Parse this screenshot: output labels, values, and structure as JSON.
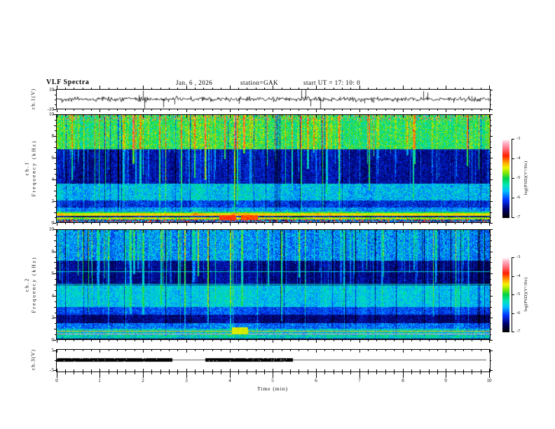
{
  "header": {
    "title": "VLF Spectra",
    "date": "Jan. 6 , 2026",
    "station": "station=GAK",
    "start_ut": "start UT =  17: 10: 0"
  },
  "axes": {
    "time_label": "Time  (min)",
    "time_ticks": [
      "0",
      "1",
      "2",
      "3",
      "4",
      "5",
      "6",
      "7",
      "8",
      "9",
      "10"
    ],
    "time_range_min": [
      0,
      10
    ],
    "minor_step_min": 0.2
  },
  "panels": {
    "ch1_wave": {
      "ylabel": "ch.1(V)",
      "ymax_label": "10",
      "ymin_label": "-10",
      "ylim": [
        -10,
        10
      ]
    },
    "ch1_spec": {
      "ylabel_channel": "ch.1",
      "ylabel_axis": "Frequency  (kHz)",
      "yticks": [
        "10",
        "8",
        "6",
        "4",
        "2",
        "0"
      ],
      "ylim_khz": [
        0,
        10
      ]
    },
    "ch2_spec": {
      "ylabel_channel": "ch.2",
      "ylabel_axis": "Frequency  (kHz)",
      "yticks": [
        "10",
        "8",
        "6",
        "4",
        "2",
        "0"
      ],
      "ylim_khz": [
        0,
        10
      ]
    },
    "ch3_wave": {
      "ylabel": "ch.3(V)",
      "ymax_label": "5",
      "ymin_label": "-5",
      "ylim": [
        -5,
        5
      ]
    }
  },
  "colorbar": {
    "label": "log(PSD)(V²/Hz)",
    "tick_labels": [
      "-3",
      "-4",
      "-5",
      "-6",
      "-7"
    ],
    "range": [
      -7,
      -3
    ],
    "stops": [
      [
        -7,
        "#000000"
      ],
      [
        -6.55,
        "#00006e"
      ],
      [
        -6.1,
        "#0033ff"
      ],
      [
        -5.65,
        "#00bfff"
      ],
      [
        -5.35,
        "#00e6b8"
      ],
      [
        -5.0,
        "#00d24a"
      ],
      [
        -4.7,
        "#8ae800"
      ],
      [
        -4.45,
        "#f2f200"
      ],
      [
        -4.2,
        "#ffa500"
      ],
      [
        -3.85,
        "#ff1e00"
      ],
      [
        -3.5,
        "#ff6e7d"
      ],
      [
        -3.2,
        "#ffb4c8"
      ],
      [
        -3,
        "#ffffff"
      ]
    ]
  },
  "colors": {
    "background": "#ffffff",
    "axis": "#000000",
    "trace": "#000000",
    "ch3_thin_line": "#555555",
    "ch3_thick_bar": "#000000"
  },
  "chart_data": [
    {
      "id": "ch1_waveform",
      "type": "line",
      "ylabel": "ch.1(V)",
      "ylim_v": [
        -10,
        10
      ],
      "xlim_min": [
        0,
        10
      ],
      "description": "broadband noise ~±2 V with intermittent impulsive spikes reaching ±10 V",
      "noise_amp_v": 2.2,
      "spikes_t_amp": [
        [
          0.12,
          -3.5
        ],
        [
          1.05,
          2.5
        ],
        [
          1.89,
          4.0
        ],
        [
          1.99,
          8.5
        ],
        [
          2.02,
          -9.0
        ],
        [
          2.46,
          -8.0
        ],
        [
          2.58,
          -3.0
        ],
        [
          2.73,
          -5.0
        ],
        [
          3.1,
          3.0
        ],
        [
          3.55,
          -2.5
        ],
        [
          4.22,
          -4.5
        ],
        [
          5.0,
          -3.0
        ],
        [
          5.66,
          9.0
        ],
        [
          5.76,
          10.0
        ],
        [
          5.87,
          -7.0
        ],
        [
          6.1,
          -9.5
        ],
        [
          6.55,
          2.5
        ],
        [
          7.12,
          -4.0
        ],
        [
          7.33,
          -3.5
        ],
        [
          8.48,
          8.0
        ],
        [
          8.57,
          6.5
        ],
        [
          9.17,
          -3.5
        ],
        [
          9.6,
          3.0
        ]
      ]
    },
    {
      "id": "ch1_spectrogram",
      "type": "heatmap",
      "ylim_khz": [
        0,
        10
      ],
      "z_range": [
        -7,
        -3
      ],
      "z_label": "log(PSD)(V²/Hz)",
      "top_red": true,
      "seed": 1337,
      "bands": [
        {
          "f_khz": [
            6.8,
            10.01
          ],
          "base": -5.0,
          "noise": 0.5,
          "streak": 0.95
        },
        {
          "f_khz": [
            3.6,
            6.8
          ],
          "base": -6.35,
          "noise": 0.33,
          "streak": 1.25
        },
        {
          "f_khz": [
            2.0,
            3.6
          ],
          "base": -5.55,
          "noise": 0.4,
          "streak": 0.5
        },
        {
          "f_khz": [
            1.35,
            2.0
          ],
          "base": -6.1,
          "noise": 0.38,
          "streak": 0.55
        },
        {
          "f_khz": [
            1.0,
            1.35
          ],
          "base": -5.7,
          "noise": 0.4,
          "streak": 0.35
        },
        {
          "f_khz": [
            0.82,
            1.0
          ],
          "base": -4.95,
          "noise": 0.3,
          "streak": 0.15
        },
        {
          "f_khz": [
            0.62,
            0.82
          ],
          "base": -4.35,
          "noise": 0.22,
          "streak": 0.1
        },
        {
          "f_khz": [
            0.45,
            0.62
          ],
          "base": -6.35,
          "noise": 0.4,
          "streak": 0.1
        },
        {
          "f_khz": [
            0.28,
            0.45
          ],
          "base": -4.55,
          "noise": 0.3,
          "streak": 0.1
        },
        {
          "f_khz": [
            0.0,
            0.28
          ],
          "base": -5.9,
          "noise": 0.6,
          "streak": 0.2,
          "speckle": true
        }
      ],
      "hlines": [],
      "blobs": [
        {
          "t_min": [
            3.75,
            4.12
          ],
          "f_khz": [
            0.28,
            0.64
          ],
          "value": -3.85
        },
        {
          "t_min": [
            4.25,
            4.62
          ],
          "f_khz": [
            0.28,
            0.64
          ],
          "value": -3.95
        }
      ]
    },
    {
      "id": "ch2_spectrogram",
      "type": "heatmap",
      "ylim_khz": [
        0,
        10
      ],
      "z_range": [
        -7,
        -3
      ],
      "z_label": "log(PSD)(V²/Hz)",
      "top_red": false,
      "seed": 9001,
      "bands": [
        {
          "f_khz": [
            7.2,
            10.01
          ],
          "base": -5.8,
          "noise": 0.45,
          "streak": 0.9
        },
        {
          "f_khz": [
            4.95,
            7.2
          ],
          "base": -6.5,
          "noise": 0.28,
          "streak": 1.2
        },
        {
          "f_khz": [
            2.95,
            4.95
          ],
          "base": -5.55,
          "noise": 0.33,
          "streak": 0.55
        },
        {
          "f_khz": [
            2.25,
            2.95
          ],
          "base": -6.05,
          "noise": 0.33,
          "streak": 0.55
        },
        {
          "f_khz": [
            1.45,
            2.25
          ],
          "base": -6.5,
          "noise": 0.28,
          "streak": 0.55
        },
        {
          "f_khz": [
            0.95,
            1.45
          ],
          "base": -5.9,
          "noise": 0.4,
          "streak": 0.35
        },
        {
          "f_khz": [
            0.0,
            0.95
          ],
          "base": -5.45,
          "noise": 0.5,
          "streak": 0.25
        }
      ],
      "hlines": [
        {
          "f_khz": 6.2,
          "value": -5.45
        },
        {
          "f_khz": 5.05,
          "value": -5.4
        },
        {
          "f_khz": 0.74,
          "value": -4.25
        },
        {
          "f_khz": 0.52,
          "value": -3.3
        },
        {
          "f_khz": 0.3,
          "value": -5.15
        },
        {
          "f_khz": 0.08,
          "value": -6.7
        }
      ],
      "blobs": [
        {
          "t_min": [
            4.05,
            4.4
          ],
          "f_khz": [
            0.5,
            1.1
          ],
          "value": -4.5
        }
      ]
    },
    {
      "id": "ch3_waveform",
      "type": "line",
      "ylabel": "ch.3(V)",
      "ylim_v": [
        -5,
        5
      ],
      "level_v": 0,
      "description": "flat trace at 0 V; thick (high-amplitude) segments alternating with thin quiet line",
      "segments": [
        {
          "t_min": [
            0,
            2.67
          ],
          "amplitude": "high"
        },
        {
          "t_min": [
            2.67,
            3.43
          ],
          "amplitude": "low"
        },
        {
          "t_min": [
            3.43,
            5.47
          ],
          "amplitude": "high"
        },
        {
          "t_min": [
            5.47,
            9.93
          ],
          "amplitude": "low"
        }
      ]
    }
  ]
}
